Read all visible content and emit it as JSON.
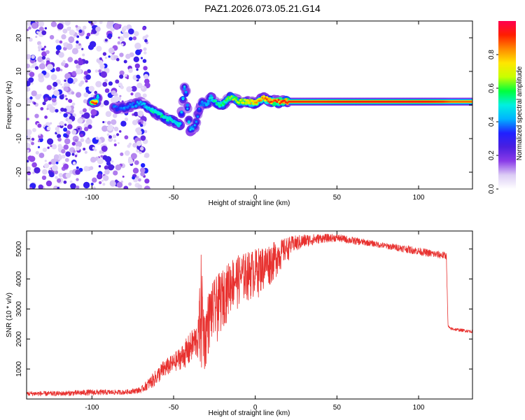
{
  "title": "PAZ1.2026.073.05.21.G14",
  "colors": {
    "snr_line": "#e8312f",
    "frame": "#000000",
    "background": "#ffffff"
  },
  "chart_data": [
    {
      "type": "heatmap",
      "name": "spectrogram",
      "xlabel": "Height of straight line (km)",
      "ylabel": "Frequency (Hz)",
      "xlim": [
        -140,
        133
      ],
      "ylim": [
        -25,
        25
      ],
      "xticks": [
        -100,
        -50,
        0,
        50,
        100
      ],
      "xtick_labels": [
        "-100",
        "-50",
        "0",
        "50",
        "100"
      ],
      "yticks": [
        -20,
        -10,
        0,
        10,
        20
      ],
      "ytick_labels": [
        "-20",
        "-10",
        "0",
        "10",
        "20"
      ],
      "colorbar": {
        "label": "Normalized spectral amplitude",
        "range": [
          0,
          1
        ],
        "ticks": [
          0.0,
          0.2,
          0.4,
          0.6,
          0.8
        ],
        "tick_labels": [
          "0.0",
          "0.2",
          "0.4",
          "0.6",
          "0.8"
        ],
        "colormap": [
          "#ffffff",
          "#dccdf5",
          "#8a3be8",
          "#4a1fe0",
          "#2020ff",
          "#00b4ff",
          "#00f0e0",
          "#00ff3c",
          "#c8ff00",
          "#ffe600",
          "#ff8a00",
          "#ff1e00",
          "#ff0050"
        ]
      },
      "ridge": [
        {
          "x": -97,
          "f": 2.5,
          "a": 0.5
        },
        {
          "x": -85,
          "f": -1.0,
          "a": 0.3
        },
        {
          "x": -80,
          "f": -0.8,
          "a": 0.35
        },
        {
          "x": -75,
          "f": 0.0,
          "a": 0.35
        },
        {
          "x": -70,
          "f": 0.5,
          "a": 0.4
        },
        {
          "x": -65,
          "f": -1.0,
          "a": 0.45
        },
        {
          "x": -62,
          "f": -2.0,
          "a": 0.5
        },
        {
          "x": -58,
          "f": -3.0,
          "a": 0.5
        },
        {
          "x": -55,
          "f": -4.0,
          "a": 0.5
        },
        {
          "x": -52,
          "f": -4.5,
          "a": 0.5
        },
        {
          "x": -49,
          "f": -5.0,
          "a": 0.45
        },
        {
          "x": -46,
          "f": -6.0,
          "a": 0.45
        },
        {
          "x": -43,
          "f": 6.5,
          "a": 0.4
        },
        {
          "x": -40,
          "f": -7.5,
          "a": 0.4
        },
        {
          "x": -37,
          "f": -6.5,
          "a": 0.35
        },
        {
          "x": -33,
          "f": 1.0,
          "a": 0.35
        },
        {
          "x": -30,
          "f": 0.0,
          "a": 0.4
        },
        {
          "x": -27,
          "f": 2.5,
          "a": 0.45
        },
        {
          "x": -24,
          "f": 0.5,
          "a": 0.5
        },
        {
          "x": -20,
          "f": 0.0,
          "a": 0.55
        },
        {
          "x": -15,
          "f": 2.5,
          "a": 0.6
        },
        {
          "x": -10,
          "f": 1.0,
          "a": 0.65
        },
        {
          "x": -5,
          "f": 1.0,
          "a": 0.75
        },
        {
          "x": 0,
          "f": 0.5,
          "a": 0.8
        },
        {
          "x": 5,
          "f": 2.0,
          "a": 0.85
        },
        {
          "x": 10,
          "f": 1.0,
          "a": 0.9
        },
        {
          "x": 20,
          "f": 1.0,
          "a": 0.95
        },
        {
          "x": 40,
          "f": 1.0,
          "a": 0.95
        },
        {
          "x": 60,
          "f": 1.0,
          "a": 0.97
        },
        {
          "x": 80,
          "f": 1.0,
          "a": 0.97
        },
        {
          "x": 100,
          "f": 1.0,
          "a": 0.98
        },
        {
          "x": 115,
          "f": 1.0,
          "a": 0.95
        },
        {
          "x": 120,
          "f": 1.0,
          "a": 0.9
        },
        {
          "x": 133,
          "f": 1.0,
          "a": 0.9
        }
      ]
    },
    {
      "type": "line",
      "name": "snr",
      "xlabel": "Height of straight line (km)",
      "ylabel": "SNR (10 * v/v)",
      "xlim": [
        -140,
        133
      ],
      "ylim": [
        0,
        5600
      ],
      "xticks": [
        -100,
        -50,
        0,
        50,
        100
      ],
      "xtick_labels": [
        "-100",
        "-50",
        "0",
        "50",
        "100"
      ],
      "yticks": [
        1000,
        2000,
        3000,
        4000,
        5000
      ],
      "ytick_labels": [
        "1000",
        "2000",
        "3000",
        "4000",
        "5000"
      ],
      "envelope": {
        "x": [
          -140,
          -120,
          -100,
          -80,
          -70,
          -62,
          -56,
          -50,
          -45,
          -40,
          -35,
          -33,
          -31,
          -29,
          -27,
          -25,
          -22,
          -18,
          -15,
          -10,
          -5,
          0,
          5,
          10,
          15,
          20,
          25,
          30,
          40,
          50,
          60,
          70,
          80,
          90,
          100,
          110,
          117,
          118,
          119,
          125,
          133
        ],
        "low": [
          100,
          100,
          120,
          150,
          200,
          400,
          700,
          900,
          1000,
          1100,
          1200,
          500,
          800,
          1300,
          1800,
          1500,
          2000,
          2500,
          2800,
          3000,
          3200,
          3300,
          3500,
          3800,
          4200,
          4600,
          4900,
          5050,
          5200,
          5250,
          5150,
          5100,
          5000,
          4900,
          4800,
          4700,
          4650,
          2400,
          2300,
          2250,
          2200
        ],
        "high": [
          260,
          260,
          320,
          300,
          400,
          900,
          1300,
          1500,
          1800,
          2200,
          2600,
          5000,
          2800,
          3500,
          3800,
          4000,
          4200,
          4400,
          4700,
          4800,
          4900,
          5000,
          5100,
          5200,
          5300,
          5400,
          5450,
          5500,
          5500,
          5500,
          5400,
          5300,
          5200,
          5150,
          5050,
          4950,
          4900,
          2500,
          2400,
          2350,
          2300
        ]
      }
    }
  ]
}
